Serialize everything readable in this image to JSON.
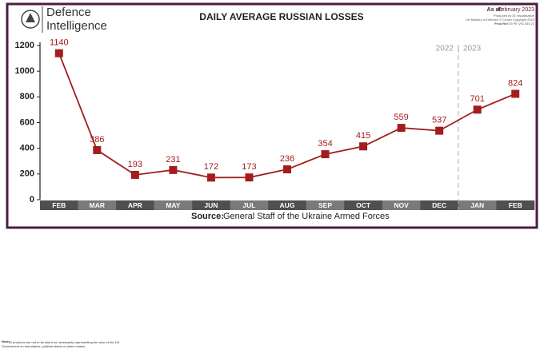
{
  "brand": {
    "line1": "Defence",
    "line2": "Intelligence"
  },
  "header": {
    "as_at_label": "As at:",
    "as_at": "February 2023",
    "produced_by": "Produced by DI Visualisation",
    "copyright": "UK Ministry of Defence © Crown Copyright 2023",
    "ref_label": "Prod Ref:",
    "ref": "DI PE VIS 034 23"
  },
  "note": {
    "label": "Note:",
    "text": "DI products are not to be taken as necessarily representing the view of the UK Government on boundaries, political status or place names."
  },
  "chart_data": {
    "type": "line",
    "title": "DAILY AVERAGE RUSSIAN LOSSES",
    "categories": [
      "FEB",
      "MAR",
      "APR",
      "MAY",
      "JUN",
      "JUL",
      "AUG",
      "SEP",
      "OCT",
      "NOV",
      "DEC",
      "JAN",
      "FEB"
    ],
    "values": [
      1140,
      386,
      193,
      231,
      172,
      173,
      236,
      354,
      415,
      559,
      537,
      701,
      824
    ],
    "color": "#a31d1d",
    "ylim": [
      0,
      1200
    ],
    "yticks": [
      0,
      200,
      400,
      600,
      800,
      1000,
      1200
    ],
    "grid": false,
    "year_labels": [
      "2022",
      "2023"
    ],
    "source_label": "Source:",
    "source": "General Staff of the Ukraine Armed Forces"
  }
}
